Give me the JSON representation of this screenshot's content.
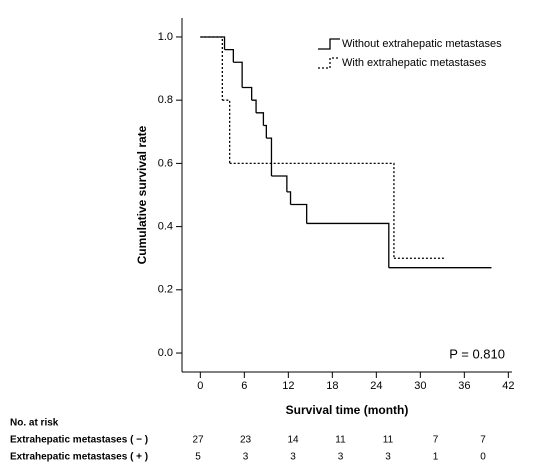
{
  "chart_data": {
    "type": "step",
    "xlabel": "Survival time (month)",
    "ylabel": "Cumulative survival rate",
    "xlim": [
      -2.5,
      42.5
    ],
    "xticks": [
      0,
      6,
      12,
      18,
      24,
      30,
      36,
      42
    ],
    "ylim": [
      -0.06,
      1.06
    ],
    "yticks": [
      {
        "value": 0,
        "label": "0.0"
      },
      {
        "value": 0.2,
        "label": "0.2"
      },
      {
        "value": 0.4,
        "label": "0.4"
      },
      {
        "value": 0.6,
        "label": "0.6"
      },
      {
        "value": 0.8,
        "label": "0.8"
      },
      {
        "value": 1,
        "label": "1.0"
      }
    ],
    "legend": "upper right",
    "annotation": "P = 0.810",
    "series": [
      {
        "name": "Without extrahepatic metastases",
        "color": "#000000",
        "style": "solid",
        "x": [
          0,
          3.3,
          4.5,
          5.7,
          7,
          7.6,
          8.6,
          9,
          9.7,
          11.8,
          12.3,
          14.5,
          25.7,
          39.7
        ],
        "values": [
          1,
          0.96,
          0.92,
          0.84,
          0.8,
          0.76,
          0.72,
          0.68,
          0.56,
          0.51,
          0.47,
          0.41,
          0.27,
          0.27
        ]
      },
      {
        "name": "With extrahepatic metastases",
        "color": "#000000",
        "style": "dashed",
        "x": [
          0,
          3,
          4,
          26.4,
          33.5
        ],
        "values": [
          1,
          0.8,
          0.6,
          0.3,
          0.3
        ]
      }
    ]
  },
  "risk_table": {
    "title": "No. at risk",
    "rows": [
      {
        "label": "Extrahepatic metastases ( − )",
        "values": [
          27,
          23,
          14,
          11,
          11,
          7,
          7
        ]
      },
      {
        "label": "Extrahepatic metastases ( + )",
        "values": [
          5,
          3,
          3,
          3,
          3,
          1,
          0
        ]
      }
    ]
  }
}
